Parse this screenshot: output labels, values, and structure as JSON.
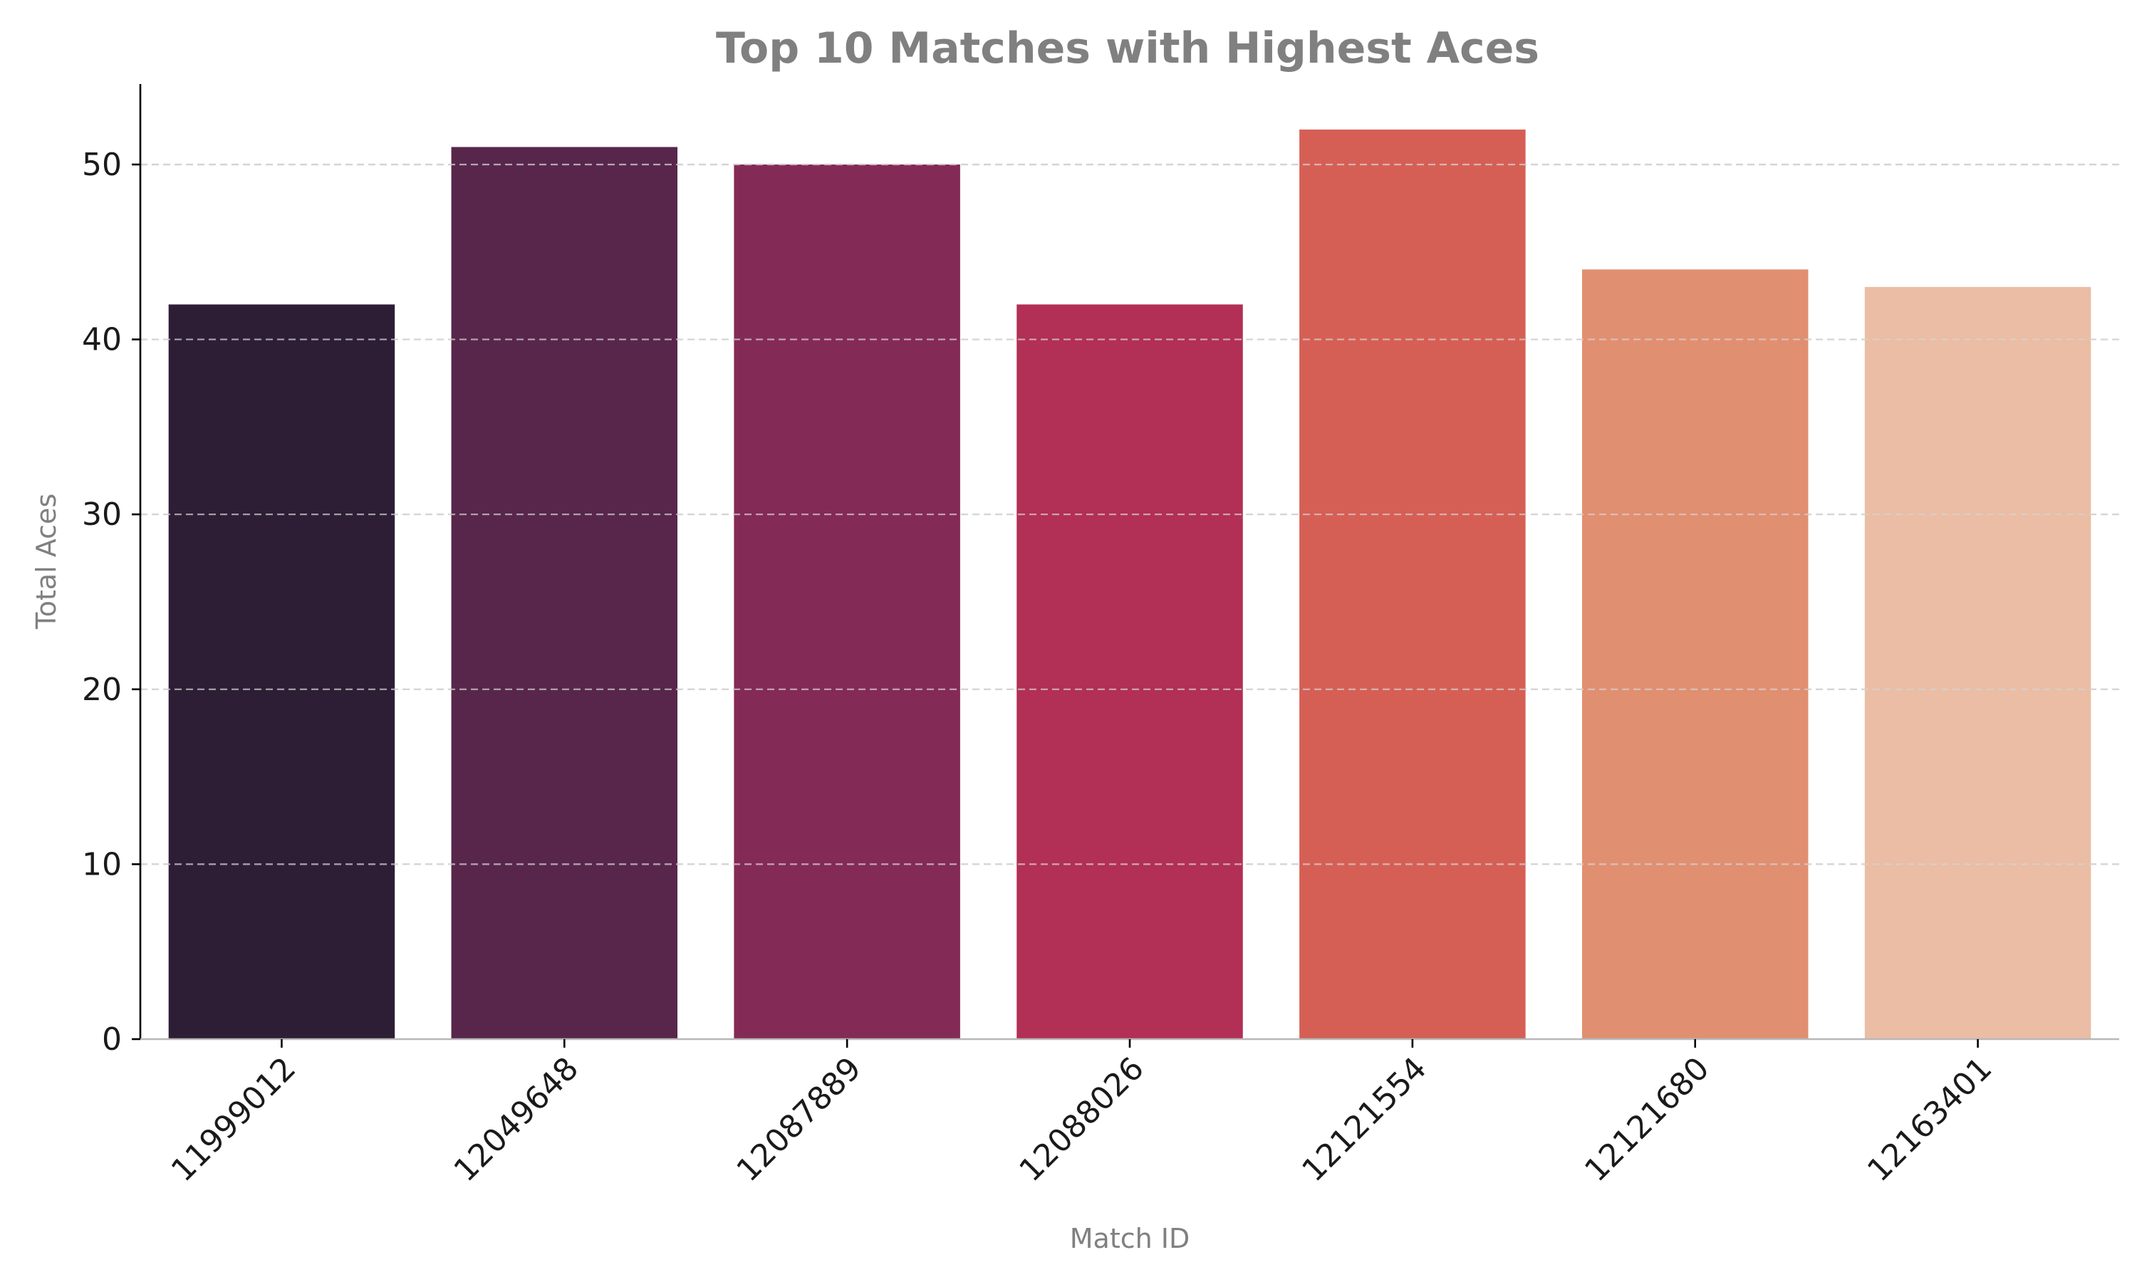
{
  "chart_data": {
    "type": "bar",
    "title": "Top 10 Matches with Highest Aces",
    "xlabel": "Match ID",
    "ylabel": "Total Aces",
    "categories": [
      "11999012",
      "12049648",
      "12087889",
      "12088026",
      "12121554",
      "12121680",
      "12163401"
    ],
    "values": [
      42,
      51,
      50,
      42,
      52,
      44,
      43
    ],
    "colors": [
      "#2d1e36",
      "#58264b",
      "#842a57",
      "#b22f55",
      "#d65f55",
      "#e18f71",
      "#eabda4"
    ],
    "ylim": [
      0,
      54.6
    ],
    "yticks": [
      0,
      10,
      20,
      30,
      40,
      50
    ],
    "grid": "y-dashed",
    "legend": "none"
  }
}
